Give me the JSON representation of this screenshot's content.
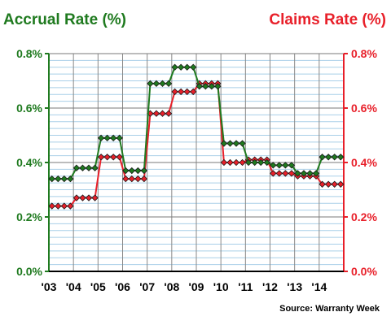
{
  "chart_data": {
    "type": "line",
    "title_left": "Accrual Rate (%)",
    "title_right": "Claims Rate (%)",
    "source": "Source: Warranty Week",
    "x_tick_labels": [
      "'03",
      "'04",
      "'05",
      "'06",
      "'07",
      "'08",
      "'09",
      "'10",
      "'11",
      "'12",
      "'13",
      "'14"
    ],
    "y_tick_labels": [
      "0.0%",
      "0.2%",
      "0.4%",
      "0.6%",
      "0.8%"
    ],
    "y_tick_values": [
      0.0,
      0.2,
      0.4,
      0.6,
      0.8
    ],
    "ylim": [
      0.0,
      0.8
    ],
    "x_unit": "quarter",
    "grid": true,
    "colors": {
      "accrual": "#1f7a1f",
      "claims": "#e8202a",
      "grid": "#a9cfe8",
      "frame": "#000000"
    },
    "series": [
      {
        "name": "Accrual Rate (%)",
        "axis": "left",
        "values": [
          0.34,
          0.34,
          0.34,
          0.34,
          0.38,
          0.38,
          0.38,
          0.38,
          0.49,
          0.49,
          0.49,
          0.49,
          0.37,
          0.37,
          0.37,
          0.37,
          0.69,
          0.69,
          0.69,
          0.69,
          0.75,
          0.75,
          0.75,
          0.75,
          0.68,
          0.68,
          0.68,
          0.68,
          0.47,
          0.47,
          0.47,
          0.47,
          0.4,
          0.4,
          0.4,
          0.4,
          0.39,
          0.39,
          0.39,
          0.39,
          0.36,
          0.36,
          0.36,
          0.36,
          0.42,
          0.42,
          0.42,
          0.42
        ]
      },
      {
        "name": "Claims Rate (%)",
        "axis": "right",
        "values": [
          0.24,
          0.24,
          0.24,
          0.24,
          0.27,
          0.27,
          0.27,
          0.27,
          0.42,
          0.42,
          0.42,
          0.42,
          0.34,
          0.34,
          0.34,
          0.34,
          0.58,
          0.58,
          0.58,
          0.58,
          0.66,
          0.66,
          0.66,
          0.66,
          0.69,
          0.69,
          0.69,
          0.69,
          0.4,
          0.4,
          0.4,
          0.4,
          0.41,
          0.41,
          0.41,
          0.41,
          0.36,
          0.36,
          0.36,
          0.36,
          0.35,
          0.35,
          0.35,
          0.35,
          0.32,
          0.32,
          0.32,
          0.32
        ]
      }
    ]
  }
}
